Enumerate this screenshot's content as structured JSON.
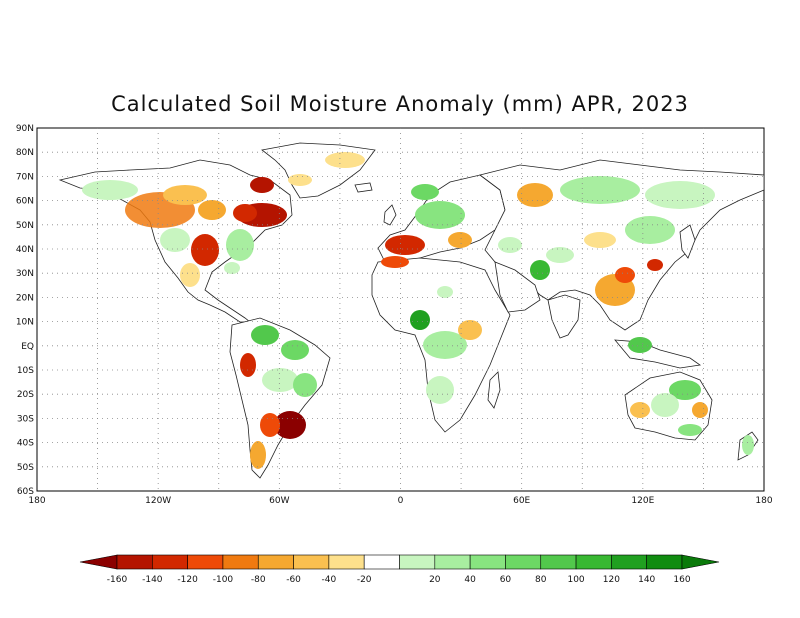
{
  "title": "Calculated Soil Moisture Anomaly (mm) APR, 2023",
  "map": {
    "lat_labels": [
      "90N",
      "80N",
      "70N",
      "60N",
      "50N",
      "40N",
      "30N",
      "20N",
      "10N",
      "EQ",
      "10S",
      "20S",
      "30S",
      "40S",
      "50S",
      "60S"
    ],
    "lon_labels": [
      "180",
      "120W",
      "60W",
      "0",
      "60E",
      "120E",
      "180"
    ],
    "gridlines": "dotted"
  },
  "colorbar": {
    "labels": [
      "-160",
      "-140",
      "-120",
      "-100",
      "-80",
      "-60",
      "-40",
      "-20",
      "20",
      "40",
      "60",
      "80",
      "100",
      "120",
      "140",
      "160"
    ],
    "colors": [
      "#8b0000",
      "#b41400",
      "#d22800",
      "#ee4a08",
      "#f07a10",
      "#f5a830",
      "#fac050",
      "#fde08c",
      "#ffffff",
      "#c8f5c0",
      "#a8eea0",
      "#88e480",
      "#6cd864",
      "#52c84c",
      "#38b832",
      "#20a020",
      "#108c10",
      "#0a7a0a"
    ]
  }
}
